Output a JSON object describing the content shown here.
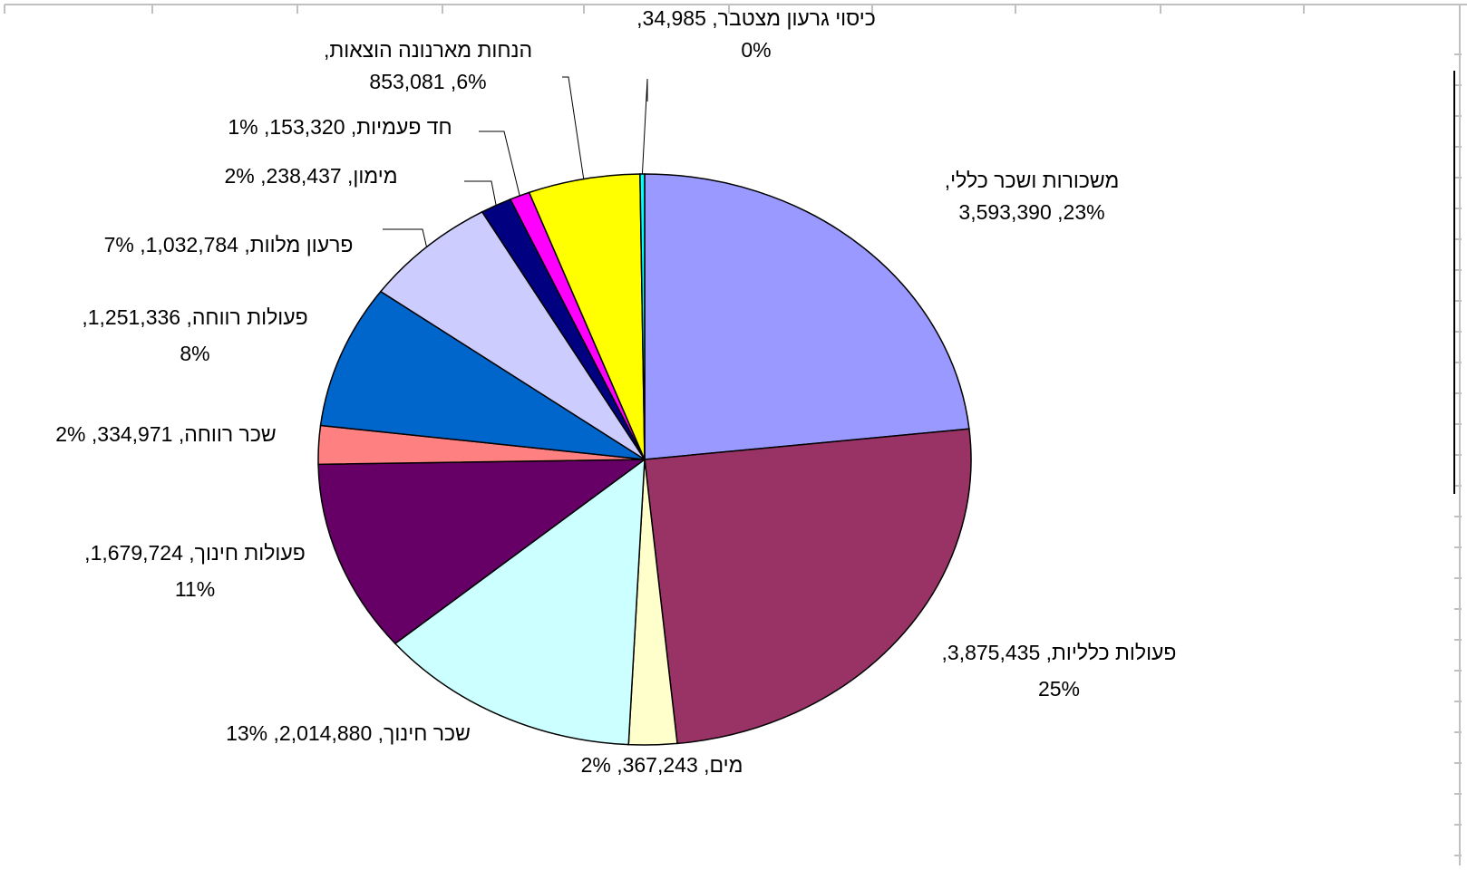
{
  "chart_data": {
    "type": "pie",
    "title": "",
    "legend": "none",
    "start_angle_deg": 0,
    "direction": "clockwise",
    "slices": [
      {
        "name": "משכורות ושכר כללי",
        "value": 3593390,
        "percent": "23%",
        "label_lines": [
          "משכורות ושכר כללי,",
          "3,593,390 ,23%"
        ],
        "color": "#9999FF"
      },
      {
        "name": "פעולות כלליות",
        "value": 3875435,
        "percent": "25%",
        "label_lines": [
          "פעולות כלליות, 3,875,435,",
          "25%"
        ],
        "color": "#993366"
      },
      {
        "name": "מים",
        "value": 367243,
        "percent": "2%",
        "label_lines": [
          "מים, 367,243, 2%"
        ],
        "color": "#FFFFCC"
      },
      {
        "name": "שכר חינוך",
        "value": 2014880,
        "percent": "13%",
        "label_lines": [
          "שכר חינוך, 2,014,880, 13%"
        ],
        "color": "#CCFFFF"
      },
      {
        "name": "פעולות חינוך",
        "value": 1679724,
        "percent": "11%",
        "label_lines": [
          "פעולות חינוך, 1,679,724,",
          "11%"
        ],
        "color": "#660066"
      },
      {
        "name": "שכר רווחה",
        "value": 334971,
        "percent": "2%",
        "label_lines": [
          "שכר רווחה, 334,971, 2%"
        ],
        "color": "#FF8080"
      },
      {
        "name": "פעולות רווחה",
        "value": 1251336,
        "percent": "8%",
        "label_lines": [
          "פעולות רווחה, 1,251,336,",
          "8%"
        ],
        "color": "#0066CC"
      },
      {
        "name": "פרעון מלוות",
        "value": 1032784,
        "percent": "7%",
        "label_lines": [
          "פרעון מלוות, 1,032,784, 7%"
        ],
        "color": "#CCCCFF"
      },
      {
        "name": "מימון",
        "value": 238437,
        "percent": "2%",
        "label_lines": [
          "מימון, 238,437, 2%"
        ],
        "color": "#000080"
      },
      {
        "name": "חד פעמיות",
        "value": 153320,
        "percent": "1%",
        "label_lines": [
          "חד פעמיות, 153,320, 1%"
        ],
        "color": "#FF00FF"
      },
      {
        "name": "הנחות מארנונה הוצאות",
        "value": 853081,
        "percent": "6%",
        "label_lines": [
          "הנחות מארנונה הוצאות,",
          "853,081 ,6%"
        ],
        "color": "#FFFF00"
      },
      {
        "name": "כיסוי גרעון מצטבר",
        "value": 34985,
        "percent": "0%",
        "label_lines": [
          "כיסוי גרעון מצטבר, 34,985,",
          "0%"
        ],
        "color": "#00FFFF"
      }
    ]
  }
}
